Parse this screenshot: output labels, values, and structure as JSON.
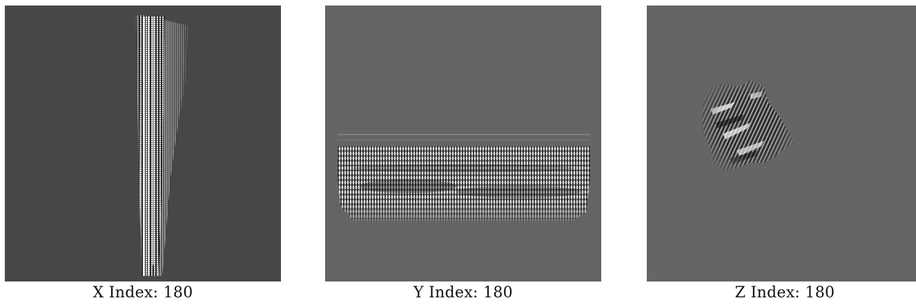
{
  "panels": [
    {
      "caption": "X Index: 180"
    },
    {
      "caption": "Y Index: 180"
    },
    {
      "caption": "Z Index: 180"
    }
  ],
  "colors": {
    "background": "#ffffff",
    "panel_x_bg": "#474747",
    "panel_y_bg": "#646464",
    "panel_z_bg": "#656565",
    "stripe_light": "#f2f2f2",
    "stripe_dark": "#101010",
    "caption_text": "#111111"
  }
}
